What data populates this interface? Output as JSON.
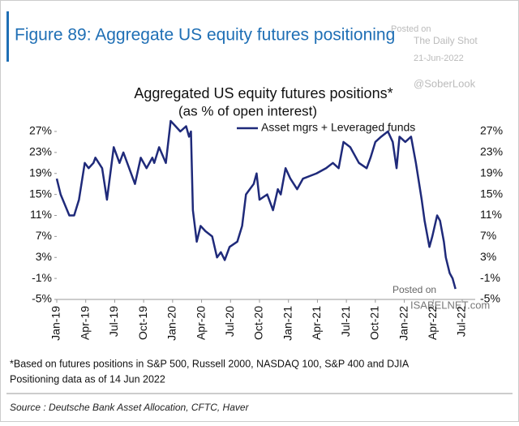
{
  "chart_data": {
    "type": "line",
    "figure_title": "Figure 89: Aggregate US equity futures positioning",
    "title": "Aggregated US equity futures positions*",
    "subtitle": "(as % of open interest)",
    "watermarks": [
      "Posted on",
      "The Daily Shot",
      "21-Jun-2022",
      "@SoberLook",
      "Posted on",
      "ISABELNET.com"
    ],
    "notes": [
      "*Based on futures positions in S&P 500, Russell 2000, NASDAQ 100, S&P 400 and DJIA",
      "Positioning data as of 14 Jun 2022"
    ],
    "source": "Source : Deutsche Bank Asset Allocation, CFTC, Haver",
    "legend": "top-right",
    "xlim": [
      0,
      42
    ],
    "xticks": [
      {
        "value": 0,
        "label": "Jan-19"
      },
      {
        "value": 3,
        "label": "Apr-19"
      },
      {
        "value": 6,
        "label": "Jul-19"
      },
      {
        "value": 9,
        "label": "Oct-19"
      },
      {
        "value": 12,
        "label": "Jan-20"
      },
      {
        "value": 15,
        "label": "Apr-20"
      },
      {
        "value": 18,
        "label": "Jul-20"
      },
      {
        "value": 21,
        "label": "Oct-20"
      },
      {
        "value": 24,
        "label": "Jan-21"
      },
      {
        "value": 27,
        "label": "Apr-21"
      },
      {
        "value": 30,
        "label": "Jul-21"
      },
      {
        "value": 33,
        "label": "Oct-21"
      },
      {
        "value": 36,
        "label": "Jan-22"
      },
      {
        "value": 39,
        "label": "Apr-22"
      },
      {
        "value": 42,
        "label": "Jul-22"
      }
    ],
    "ylim": [
      -5,
      27
    ],
    "yticks": [
      {
        "value": 27,
        "label": "27%"
      },
      {
        "value": 23,
        "label": "23%"
      },
      {
        "value": 19,
        "label": "19%"
      },
      {
        "value": 15,
        "label": "15%"
      },
      {
        "value": 11,
        "label": "11%"
      },
      {
        "value": 7,
        "label": "7%"
      },
      {
        "value": 3,
        "label": "3%"
      },
      {
        "value": -1,
        "label": "-1%"
      },
      {
        "value": -5,
        "label": "-5%"
      }
    ],
    "x": [
      0,
      0.4,
      1.3,
      1.8,
      2.3,
      2.9,
      3.3,
      3.8,
      4.0,
      4.7,
      5.2,
      5.9,
      6.5,
      6.9,
      8.1,
      8.7,
      9.3,
      9.9,
      10.1,
      10.6,
      11.3,
      11.8,
      12.3,
      12.8,
      13.4,
      13.7,
      13.9,
      14.1,
      14.5,
      14.9,
      15.4,
      16.1,
      16.6,
      17.0,
      17.4,
      17.9,
      18.7,
      19.2,
      19.6,
      20.0,
      20.4,
      20.7,
      21.0,
      21.8,
      22.4,
      22.9,
      23.2,
      23.7,
      24.2,
      24.9,
      25.5,
      26.9,
      27.9,
      28.6,
      29.2,
      29.7,
      30.4,
      31.3,
      32.1,
      32.5,
      33.0,
      33.6,
      34.3,
      34.8,
      35.2,
      35.5,
      36.1,
      36.7,
      37.2,
      37.8,
      38.1,
      38.6,
      38.9,
      39.4,
      39.7,
      40.1,
      40.3,
      40.7,
      41.0,
      41.3
    ],
    "series": [
      {
        "name": "Asset mgrs + Leveraged funds",
        "color": "#1f2a7a",
        "values": [
          18,
          15,
          11,
          11,
          14,
          21,
          20,
          21,
          22,
          20,
          14,
          24,
          21,
          23,
          17,
          22,
          20,
          22,
          21,
          24,
          21,
          29,
          28,
          27,
          28,
          26,
          27,
          12,
          6,
          9,
          8,
          7,
          3,
          4,
          2.5,
          5,
          6,
          9,
          15,
          16,
          17,
          19,
          14,
          15,
          12,
          16,
          15,
          20,
          18,
          16,
          18,
          19,
          20,
          21,
          20,
          25,
          24,
          21,
          20,
          22,
          25,
          26,
          27,
          25,
          20,
          26,
          25,
          26,
          21,
          14,
          10,
          5,
          7,
          11,
          10,
          6,
          3,
          0,
          -1,
          -3
        ]
      }
    ]
  }
}
